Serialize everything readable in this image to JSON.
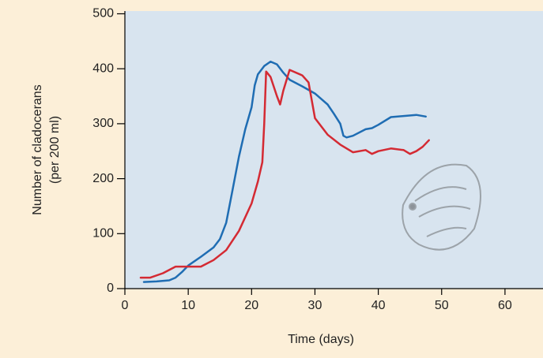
{
  "chart_data": {
    "type": "line",
    "xlabel": "Time (days)",
    "ylabel": [
      "Number of cladocerans",
      "(per 200 ml)"
    ],
    "xlim": [
      0,
      66
    ],
    "ylim": [
      0,
      505
    ],
    "xticks": [
      0,
      10,
      20,
      30,
      40,
      50,
      60
    ],
    "yticks": [
      0,
      100,
      200,
      300,
      400,
      500
    ],
    "series": [
      {
        "color": "#1f6db3",
        "x": [
          3,
          5,
          7,
          8,
          9,
          10,
          12,
          14,
          15,
          16,
          17,
          18,
          19,
          20,
          20.5,
          21,
          22,
          23,
          24,
          25,
          26,
          28,
          30,
          32,
          33,
          34,
          34.5,
          35,
          36,
          38,
          39,
          40,
          42,
          44,
          46,
          47.5
        ],
        "values": [
          12,
          13,
          15,
          20,
          30,
          42,
          58,
          75,
          90,
          120,
          180,
          240,
          290,
          330,
          370,
          390,
          405,
          413,
          408,
          393,
          380,
          368,
          355,
          335,
          318,
          300,
          278,
          275,
          278,
          290,
          292,
          298,
          312,
          314,
          316,
          313
        ]
      },
      {
        "color": "#d42a33",
        "x": [
          2.5,
          4,
          6,
          8,
          10,
          12,
          14,
          16,
          18,
          20,
          21,
          21.7,
          22,
          22.3,
          23,
          24,
          24.5,
          25,
          26,
          28,
          29,
          30,
          32,
          34,
          36,
          38,
          39,
          40,
          42,
          44,
          45,
          46,
          47,
          48
        ],
        "values": [
          20,
          20,
          28,
          40,
          40,
          40,
          52,
          70,
          105,
          155,
          195,
          230,
          300,
          395,
          385,
          350,
          335,
          360,
          398,
          388,
          375,
          310,
          280,
          262,
          248,
          252,
          245,
          250,
          255,
          252,
          245,
          250,
          258,
          270
        ]
      }
    ]
  }
}
